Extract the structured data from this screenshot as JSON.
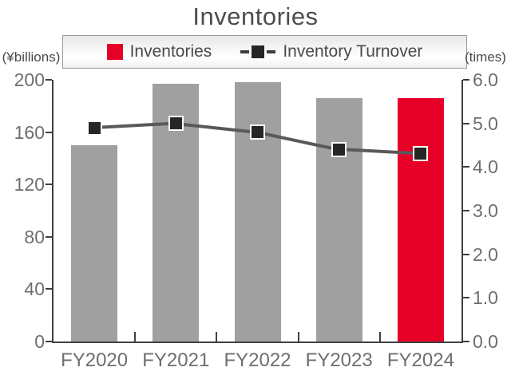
{
  "title": "Inventories",
  "legend": {
    "items": [
      {
        "label": "Inventories",
        "swatch": "bar-swatch",
        "color": "#e60027"
      },
      {
        "label": "Inventory Turnover",
        "swatch": "line-marker-swatch",
        "color": "#262626"
      }
    ]
  },
  "axes": {
    "left": {
      "unit": "(¥billions)",
      "tick_labels": [
        "200",
        "160",
        "120",
        "80",
        "40",
        "0"
      ]
    },
    "right": {
      "unit": "(times)",
      "tick_labels": [
        "6.0",
        "5.0",
        "4.0",
        "3.0",
        "2.0",
        "1.0",
        "0.0"
      ]
    }
  },
  "chart_data": {
    "type": "bar+line",
    "title": "Inventories",
    "categories": [
      "FY2020",
      "FY2021",
      "FY2022",
      "FY2023",
      "FY2024"
    ],
    "series": [
      {
        "name": "Inventories",
        "type": "bar",
        "axis": "left",
        "values": [
          150,
          197,
          198,
          186,
          186
        ],
        "bar_colors": [
          "#a0a0a0",
          "#a0a0a0",
          "#a0a0a0",
          "#a0a0a0",
          "#e60027"
        ]
      },
      {
        "name": "Inventory Turnover",
        "type": "line",
        "axis": "right",
        "values": [
          4.9,
          5.0,
          4.8,
          4.4,
          4.3
        ],
        "line_color": "#595959",
        "marker": "square",
        "marker_color": "#262626"
      }
    ],
    "left_axis": {
      "label": "(¥billions)",
      "range": [
        0,
        200
      ],
      "tick_step": 40
    },
    "right_axis": {
      "label": "(times)",
      "range": [
        0,
        6.0
      ],
      "tick_step": 1.0
    },
    "grid": false,
    "legend_position": "top"
  },
  "colors": {
    "bar_default": "#a0a0a0",
    "bar_highlight": "#e60027",
    "line": "#595959",
    "marker_fill": "#262626",
    "axis_line": "#3f3f3f",
    "tick_text": "#6e6e6e",
    "title_text": "#4d4d4d"
  }
}
